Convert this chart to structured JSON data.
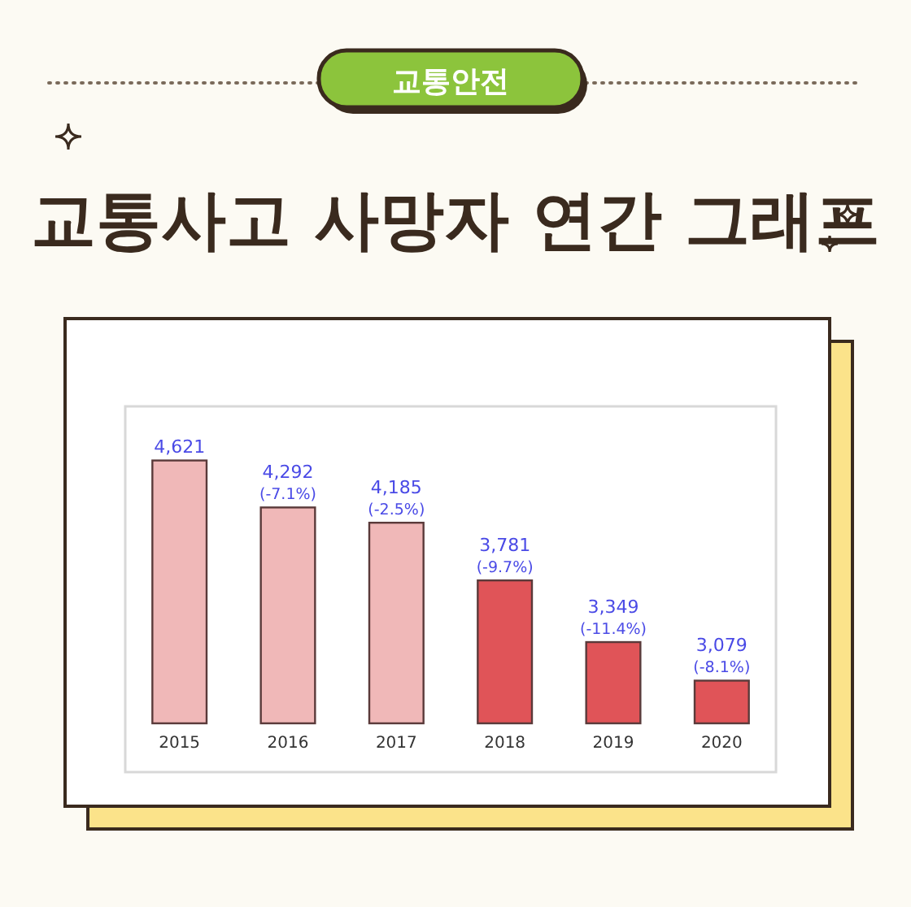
{
  "chart_data": {
    "type": "bar",
    "subtitle": "교통안전",
    "title": "교통사고 사망자 연간 그래프",
    "categories": [
      "2015",
      "2016",
      "2017",
      "2018",
      "2019",
      "2020"
    ],
    "values": [
      4621,
      4292,
      4185,
      3781,
      3349,
      3079
    ],
    "colors": [
      "#f0b8b8",
      "#f0b8b8",
      "#f0b8b8",
      "#e05458",
      "#e05458",
      "#e05458"
    ],
    "value_labels": [
      "4,621",
      "4,292\n(-7.1%)",
      "4,185\n(-2.5%)",
      "3,781\n(-9.7%)",
      "3,349\n(-11.4%)",
      "3,079\n(-8.1%)"
    ],
    "ylim": [
      2780,
      5000
    ]
  }
}
